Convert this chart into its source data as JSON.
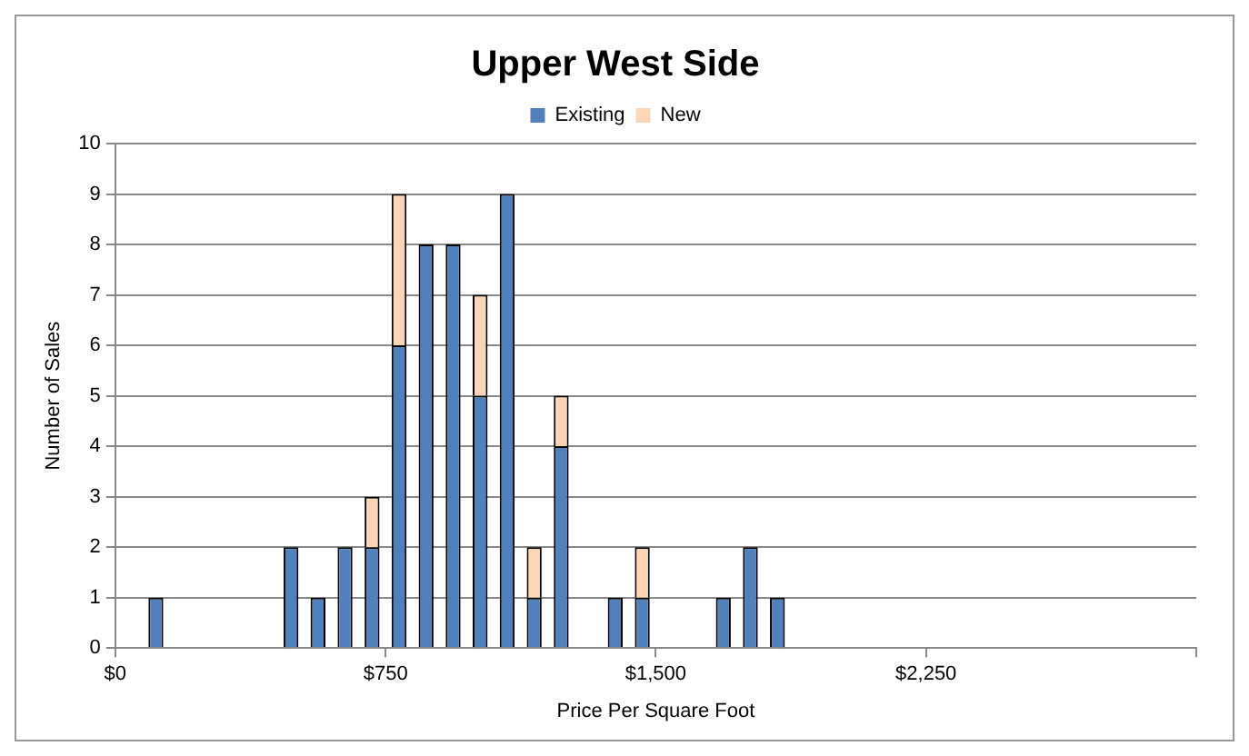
{
  "chart_data": {
    "type": "bar",
    "title": "Upper West Side",
    "xlabel": "Price Per Square Foot",
    "ylabel": "Number of Sales",
    "x": [
      37.5,
      112.5,
      187.5,
      262.5,
      337.5,
      412.5,
      487.5,
      562.5,
      637.5,
      712.5,
      787.5,
      862.5,
      937.5,
      1012.5,
      1087.5,
      1162.5,
      1237.5,
      1312.5,
      1387.5,
      1462.5,
      1537.5,
      1612.5,
      1687.5,
      1762.5,
      1837.5,
      1912.5,
      1987.5,
      2062.5,
      2137.5,
      2212.5,
      2287.5,
      2362.5,
      2437.5,
      2512.5,
      2587.5,
      2662.5,
      2737.5,
      2812.5,
      2887.5,
      2962.5
    ],
    "series": [
      {
        "name": "Existing",
        "color": "#4f81bd",
        "values": [
          0,
          1,
          0,
          0,
          0,
          0,
          2,
          1,
          2,
          2,
          6,
          8,
          8,
          5,
          9,
          1,
          4,
          0,
          1,
          1,
          0,
          0,
          1,
          2,
          1,
          0,
          0,
          0,
          0,
          0,
          0,
          0,
          0,
          0,
          0,
          0,
          0,
          0,
          0,
          0
        ]
      },
      {
        "name": "New",
        "color": "#fcd5b5",
        "values": [
          0,
          0,
          0,
          0,
          0,
          0,
          0,
          0,
          0,
          1,
          3,
          0,
          0,
          2,
          0,
          1,
          1,
          0,
          0,
          1,
          0,
          0,
          0,
          0,
          0,
          0,
          0,
          0,
          0,
          0,
          0,
          0,
          0,
          0,
          0,
          0,
          0,
          0,
          0,
          0
        ]
      }
    ],
    "stacked": true,
    "xlim": [
      0,
      3000
    ],
    "xticks": [
      {
        "value": 0,
        "label": "$0"
      },
      {
        "value": 750,
        "label": "$750"
      },
      {
        "value": 1500,
        "label": "$1,500"
      },
      {
        "value": 2250,
        "label": "$2,250"
      },
      {
        "value": 3000,
        "label": null
      }
    ],
    "ylim": [
      0,
      10
    ],
    "yticks": [
      0,
      1,
      2,
      3,
      4,
      5,
      6,
      7,
      8,
      9,
      10
    ],
    "grid": "y",
    "legend": "top"
  }
}
